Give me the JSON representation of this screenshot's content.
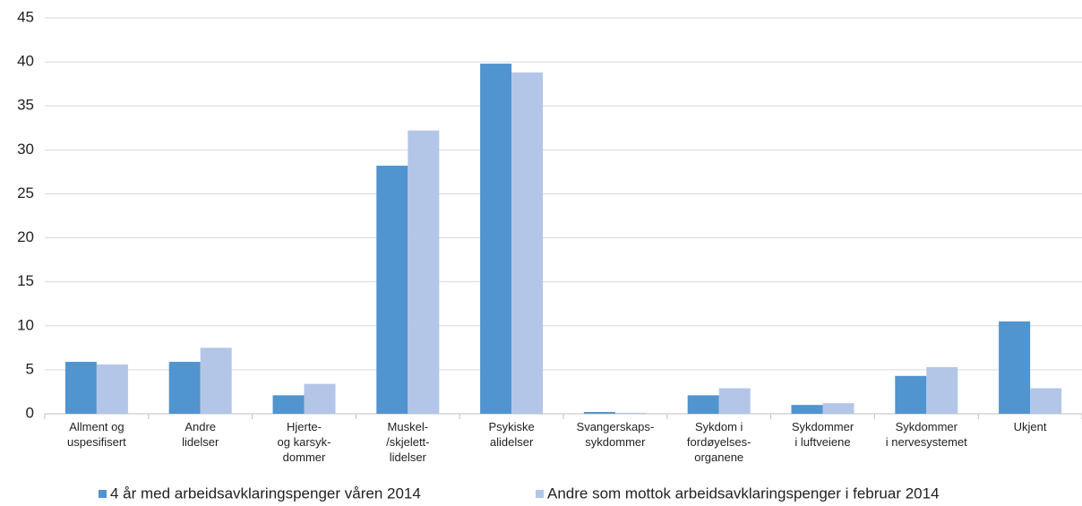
{
  "chart_data": {
    "type": "bar",
    "categories": [
      [
        "Allment og",
        "uspesifisert"
      ],
      [
        "Andre",
        "lidelser"
      ],
      [
        "Hjerte-",
        "og karsyk-",
        "dommer"
      ],
      [
        "Muskel-",
        "/skjelett-",
        "lidelser"
      ],
      [
        "Psykiske",
        "alidelser"
      ],
      [
        "Svangerskaps-",
        "sykdommer"
      ],
      [
        "Sykdom i",
        "fordøyelses-",
        "organene"
      ],
      [
        "Sykdommer",
        "i luftveiene"
      ],
      [
        "Sykdommer",
        "i nervesystemet"
      ],
      [
        "Ukjent"
      ]
    ],
    "series": [
      {
        "name": "4 år med arbeidsavklaringspenger våren 2014",
        "color": "#5094d0",
        "values": [
          5.9,
          5.9,
          2.1,
          28.2,
          39.8,
          0.2,
          2.1,
          1.0,
          4.3,
          10.5
        ]
      },
      {
        "name": "Andre som mottok arbeidsavklaringspenger i februar 2014",
        "color": "#b3c6e7",
        "values": [
          5.6,
          7.5,
          3.4,
          32.2,
          38.8,
          0.1,
          2.9,
          1.2,
          5.3,
          2.9
        ]
      }
    ],
    "ylim": [
      0,
      45
    ],
    "yticks": [
      0,
      5,
      10,
      15,
      20,
      25,
      30,
      35,
      40,
      45
    ],
    "grid": true,
    "legend": "bottom"
  }
}
